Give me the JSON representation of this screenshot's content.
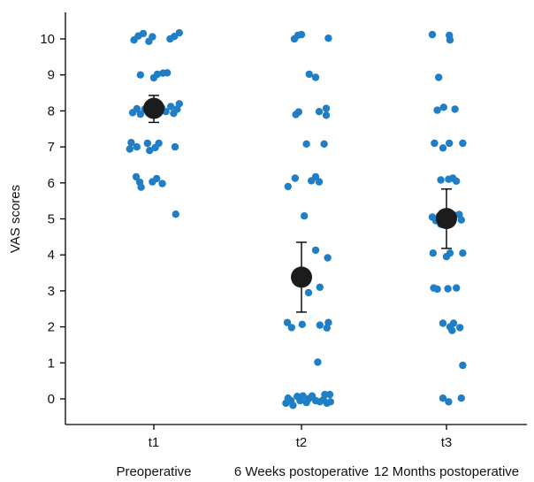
{
  "chart_data": {
    "type": "scatter",
    "title": "",
    "xlabel": "",
    "ylabel": "VAS scores",
    "ylim": [
      0,
      10
    ],
    "yticks": [
      0,
      1,
      2,
      3,
      4,
      5,
      6,
      7,
      8,
      9,
      10
    ],
    "grid": false,
    "categories": [
      {
        "tick": "t1",
        "label": "Preoperative"
      },
      {
        "tick": "t2",
        "label": "6 Weeks postoperative"
      },
      {
        "tick": "t3",
        "label": "12 Months postoperative"
      }
    ],
    "colors": {
      "points": "#1f7ec6",
      "mean": "#1c1c1c",
      "error_bars": "#000000"
    },
    "groups": [
      {
        "tick": "t1",
        "mean": 8.07,
        "error_low": 7.68,
        "error_high": 8.43,
        "points": [
          {
            "j": -0.28,
            "v": 9.97
          },
          {
            "j": -0.22,
            "v": 10.08
          },
          {
            "j": -0.15,
            "v": 10.15
          },
          {
            "j": -0.07,
            "v": 9.93
          },
          {
            "j": -0.02,
            "v": 10.06
          },
          {
            "j": 0.23,
            "v": 10.0
          },
          {
            "j": 0.29,
            "v": 10.07
          },
          {
            "j": 0.36,
            "v": 10.17
          },
          {
            "j": -0.19,
            "v": 9.0
          },
          {
            "j": 0.0,
            "v": 8.92
          },
          {
            "j": 0.05,
            "v": 9.02
          },
          {
            "j": 0.13,
            "v": 9.05
          },
          {
            "j": 0.19,
            "v": 9.06
          },
          {
            "j": -0.3,
            "v": 7.95
          },
          {
            "j": -0.24,
            "v": 8.06
          },
          {
            "j": -0.19,
            "v": 7.91
          },
          {
            "j": -0.13,
            "v": 8.05
          },
          {
            "j": -0.07,
            "v": 7.97
          },
          {
            "j": 0.06,
            "v": 7.93
          },
          {
            "j": 0.11,
            "v": 8.09
          },
          {
            "j": 0.17,
            "v": 7.98
          },
          {
            "j": 0.24,
            "v": 8.12
          },
          {
            "j": 0.28,
            "v": 7.93
          },
          {
            "j": 0.33,
            "v": 8.05
          },
          {
            "j": 0.36,
            "v": 8.2
          },
          {
            "j": -0.34,
            "v": 6.94
          },
          {
            "j": -0.32,
            "v": 7.12
          },
          {
            "j": -0.24,
            "v": 7.0
          },
          {
            "j": -0.09,
            "v": 7.1
          },
          {
            "j": -0.06,
            "v": 6.9
          },
          {
            "j": 0.02,
            "v": 6.98
          },
          {
            "j": 0.07,
            "v": 7.1
          },
          {
            "j": 0.3,
            "v": 7.0
          },
          {
            "j": -0.25,
            "v": 6.17
          },
          {
            "j": -0.2,
            "v": 6.02
          },
          {
            "j": -0.18,
            "v": 5.88
          },
          {
            "j": -0.02,
            "v": 6.03
          },
          {
            "j": 0.04,
            "v": 6.12
          },
          {
            "j": 0.12,
            "v": 5.98
          },
          {
            "j": 0.31,
            "v": 5.13
          }
        ]
      },
      {
        "tick": "t2",
        "mean": 3.38,
        "error_low": 2.41,
        "error_high": 4.35,
        "points": [
          {
            "j": -0.1,
            "v": 10.0
          },
          {
            "j": -0.05,
            "v": 10.1
          },
          {
            "j": 0.0,
            "v": 10.12
          },
          {
            "j": 0.38,
            "v": 10.02
          },
          {
            "j": 0.11,
            "v": 9.02
          },
          {
            "j": 0.2,
            "v": 8.93
          },
          {
            "j": -0.04,
            "v": 7.97
          },
          {
            "j": -0.08,
            "v": 7.9
          },
          {
            "j": 0.25,
            "v": 7.98
          },
          {
            "j": 0.35,
            "v": 8.07
          },
          {
            "j": 0.35,
            "v": 7.88
          },
          {
            "j": 0.07,
            "v": 7.08
          },
          {
            "j": 0.32,
            "v": 7.08
          },
          {
            "j": -0.19,
            "v": 5.9
          },
          {
            "j": -0.09,
            "v": 6.13
          },
          {
            "j": 0.14,
            "v": 6.06
          },
          {
            "j": 0.2,
            "v": 6.17
          },
          {
            "j": 0.25,
            "v": 6.03
          },
          {
            "j": 0.04,
            "v": 5.08
          },
          {
            "j": 0.2,
            "v": 4.13
          },
          {
            "j": 0.37,
            "v": 3.92
          },
          {
            "j": 0.1,
            "v": 2.95
          },
          {
            "j": 0.26,
            "v": 3.1
          },
          {
            "j": -0.2,
            "v": 2.12
          },
          {
            "j": -0.14,
            "v": 1.98
          },
          {
            "j": 0.01,
            "v": 2.07
          },
          {
            "j": 0.26,
            "v": 2.05
          },
          {
            "j": 0.36,
            "v": 1.97
          },
          {
            "j": 0.38,
            "v": 2.12
          },
          {
            "j": 0.23,
            "v": 1.02
          },
          {
            "j": -0.22,
            "v": -0.12
          },
          {
            "j": -0.19,
            "v": 0.02
          },
          {
            "j": -0.15,
            "v": -0.05
          },
          {
            "j": -0.12,
            "v": -0.18
          },
          {
            "j": -0.06,
            "v": 0.07
          },
          {
            "j": -0.02,
            "v": -0.05
          },
          {
            "j": 0.02,
            "v": 0.08
          },
          {
            "j": 0.07,
            "v": -0.1
          },
          {
            "j": 0.1,
            "v": 0.0
          },
          {
            "j": 0.15,
            "v": 0.08
          },
          {
            "j": 0.2,
            "v": -0.05
          },
          {
            "j": 0.26,
            "v": -0.08
          },
          {
            "j": 0.31,
            "v": -0.02
          },
          {
            "j": 0.33,
            "v": 0.12
          },
          {
            "j": 0.36,
            "v": -0.12
          },
          {
            "j": 0.4,
            "v": 0.12
          },
          {
            "j": 0.41,
            "v": -0.08
          }
        ]
      },
      {
        "tick": "t3",
        "mean": 5.01,
        "error_low": 4.18,
        "error_high": 5.83,
        "points": [
          {
            "j": -0.2,
            "v": 10.12
          },
          {
            "j": 0.04,
            "v": 10.1
          },
          {
            "j": 0.05,
            "v": 9.97
          },
          {
            "j": -0.11,
            "v": 8.93
          },
          {
            "j": -0.13,
            "v": 8.02
          },
          {
            "j": -0.04,
            "v": 8.1
          },
          {
            "j": 0.12,
            "v": 8.05
          },
          {
            "j": -0.17,
            "v": 7.1
          },
          {
            "j": -0.05,
            "v": 6.97
          },
          {
            "j": 0.04,
            "v": 7.1
          },
          {
            "j": 0.23,
            "v": 7.1
          },
          {
            "j": -0.08,
            "v": 6.08
          },
          {
            "j": 0.03,
            "v": 6.1
          },
          {
            "j": 0.09,
            "v": 6.13
          },
          {
            "j": 0.14,
            "v": 6.05
          },
          {
            "j": -0.2,
            "v": 5.05
          },
          {
            "j": -0.15,
            "v": 4.95
          },
          {
            "j": -0.1,
            "v": 5.08
          },
          {
            "j": -0.08,
            "v": 4.85
          },
          {
            "j": 0.11,
            "v": 5.1
          },
          {
            "j": 0.18,
            "v": 5.12
          },
          {
            "j": 0.21,
            "v": 4.97
          },
          {
            "j": -0.19,
            "v": 4.05
          },
          {
            "j": 0.0,
            "v": 3.95
          },
          {
            "j": 0.05,
            "v": 4.05
          },
          {
            "j": 0.23,
            "v": 4.05
          },
          {
            "j": -0.18,
            "v": 3.08
          },
          {
            "j": -0.13,
            "v": 3.05
          },
          {
            "j": 0.02,
            "v": 3.06
          },
          {
            "j": 0.14,
            "v": 3.08
          },
          {
            "j": -0.05,
            "v": 2.1
          },
          {
            "j": 0.05,
            "v": 2.0
          },
          {
            "j": 0.08,
            "v": 1.9
          },
          {
            "j": 0.1,
            "v": 2.1
          },
          {
            "j": 0.19,
            "v": 1.98
          },
          {
            "j": 0.23,
            "v": 0.93
          },
          {
            "j": -0.05,
            "v": 0.02
          },
          {
            "j": 0.03,
            "v": -0.08
          },
          {
            "j": 0.21,
            "v": 0.02
          }
        ]
      }
    ]
  }
}
